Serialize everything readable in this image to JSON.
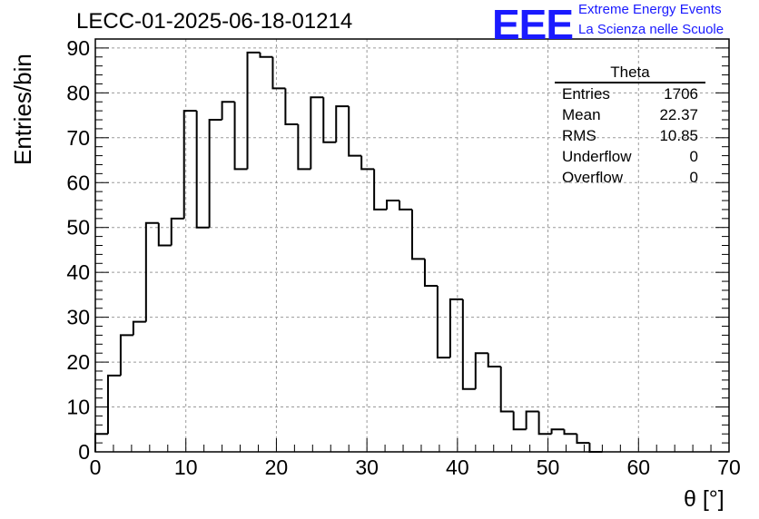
{
  "header": {
    "run_title": "LECC-01-2025-06-18-01214",
    "logo_text": "EEE",
    "logo_line1": "Extreme Energy Events",
    "logo_line2": "La Scienza nelle Scuole",
    "brand_color": "#1a1aff"
  },
  "stats": {
    "title": "Theta",
    "rows": [
      {
        "label": "Entries",
        "value": "1706"
      },
      {
        "label": "Mean",
        "value": "22.37"
      },
      {
        "label": "RMS",
        "value": "10.85"
      },
      {
        "label": "Underflow",
        "value": "0"
      },
      {
        "label": "Overflow",
        "value": "0"
      }
    ]
  },
  "chart_data": {
    "type": "histogram",
    "bin_width": 1.4,
    "x_start": 0,
    "values": [
      4,
      17,
      26,
      29,
      51,
      46,
      52,
      76,
      50,
      74,
      78,
      63,
      89,
      88,
      81,
      73,
      63,
      79,
      69,
      77,
      66,
      63,
      54,
      56,
      54,
      43,
      37,
      21,
      34,
      14,
      22,
      19,
      9,
      5,
      9,
      4,
      5,
      4,
      2,
      0
    ],
    "xlabel": "θ [°]",
    "ylabel": "Entries/bin",
    "xlim": [
      0,
      70
    ],
    "ylim": [
      0,
      92
    ],
    "x_ticks": [
      0,
      10,
      20,
      30,
      40,
      50,
      60,
      70
    ],
    "y_ticks": [
      0,
      10,
      20,
      30,
      40,
      50,
      60,
      70,
      80,
      90
    ],
    "grid": true
  }
}
